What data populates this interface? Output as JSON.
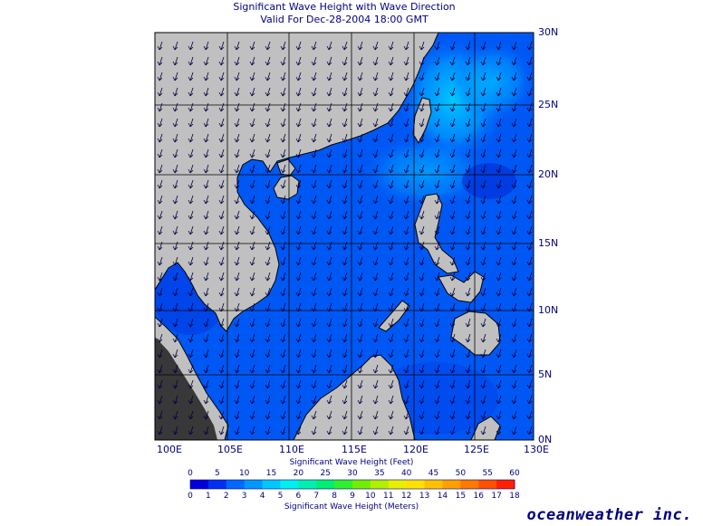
{
  "header": {
    "title": "Significant Wave Height with Wave Direction",
    "valid_time": "Valid For Dec-28-2004 18:00 GMT"
  },
  "map": {
    "lat_labels": [
      "30N",
      "25N",
      "20N",
      "15N",
      "10N",
      "5N",
      "0N"
    ],
    "lon_labels": [
      "100E",
      "105E",
      "110E",
      "115E",
      "120E",
      "125E",
      "130E"
    ],
    "land_color": "#c0c0c0",
    "grid_color": "#000000",
    "swell_direction": "south-southwest"
  },
  "colorbar": {
    "feet_label": "Significant Wave Height (Feet)",
    "meters_label": "Significant Wave Height (Meters)",
    "feet_ticks": [
      "0",
      "5",
      "10",
      "15",
      "20",
      "25",
      "30",
      "35",
      "40",
      "45",
      "50",
      "55",
      "60"
    ],
    "meter_ticks": [
      "0",
      "1",
      "2",
      "3",
      "4",
      "5",
      "6",
      "7",
      "8",
      "9",
      "10",
      "11",
      "12",
      "13",
      "14",
      "15",
      "16",
      "17",
      "18"
    ],
    "colors": [
      "#0000d8",
      "#0030f0",
      "#0068ff",
      "#0098ff",
      "#00c8ff",
      "#00f0f0",
      "#00f0b0",
      "#00f070",
      "#30f030",
      "#70f000",
      "#b0f000",
      "#e8f000",
      "#ffe000",
      "#ffc000",
      "#ffa000",
      "#ff7800",
      "#ff5000",
      "#ff2000"
    ]
  },
  "brand": "oceanweather inc."
}
